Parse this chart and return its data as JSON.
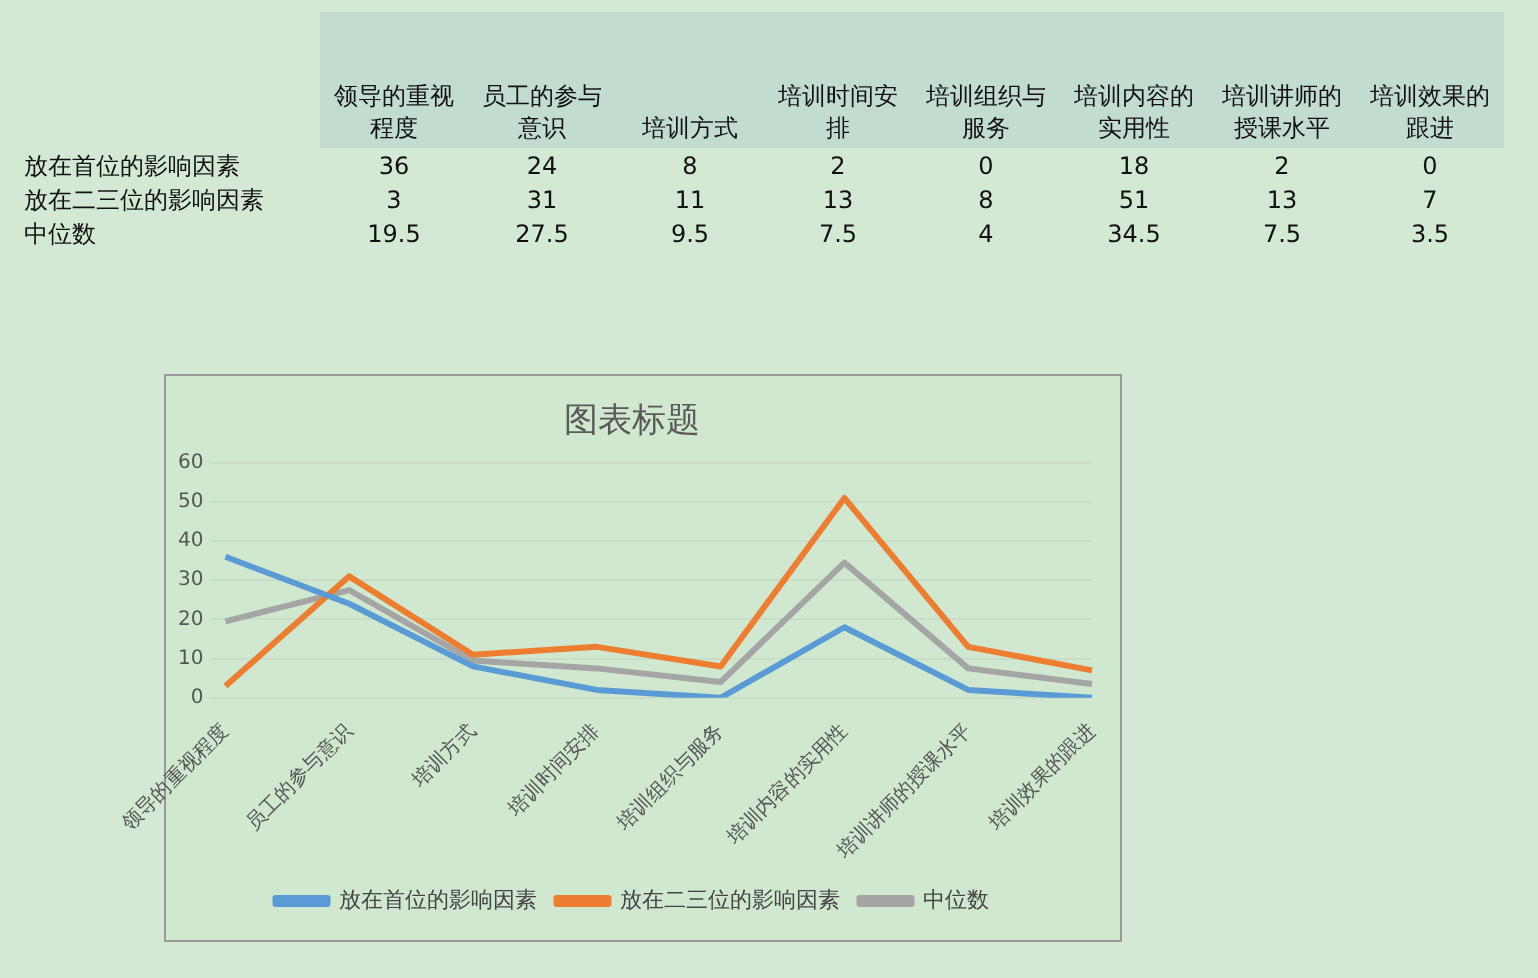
{
  "chart_data": [
    {
      "type": "heatmap",
      "categories": [
        "领导的重视程度",
        "员工的参与意识",
        "培训方式",
        "培训时间安排",
        "培训组织与服务",
        "培训内容的实用性",
        "培训讲师的授课水平",
        "培训效果的跟进"
      ],
      "y_categories": [
        "放在首位的影响因素",
        "放在二三位的影响因素",
        "中位数"
      ],
      "cells": [
        [
          36,
          24,
          8,
          2,
          0,
          18,
          2,
          0
        ],
        [
          3,
          31,
          11,
          13,
          8,
          51,
          13,
          7
        ],
        [
          19.5,
          27.5,
          9.5,
          7.5,
          4,
          34.5,
          7.5,
          3.5
        ]
      ],
      "data_labels": true
    },
    {
      "type": "line",
      "title": "图表标题",
      "categories": [
        "领导的重视程度",
        "员工的参与意识",
        "培训方式",
        "培训时间安排",
        "培训组织与服务",
        "培训内容的实用性",
        "培训讲师的授课水平",
        "培训效果的跟进"
      ],
      "series": [
        {
          "name": "放在首位的影响因素",
          "color": "#5b9bd5",
          "values": [
            36,
            24,
            8,
            2,
            0,
            18,
            2,
            0
          ]
        },
        {
          "name": "放在二三位的影响因素",
          "color": "#ed7d31",
          "values": [
            3,
            31,
            11,
            13,
            8,
            51,
            13,
            7
          ]
        },
        {
          "name": "中位数",
          "color": "#a5a5a5",
          "values": [
            19.5,
            27.5,
            9.5,
            7.5,
            4,
            34.5,
            7.5,
            3.5
          ]
        }
      ],
      "ylim": [
        0,
        60
      ],
      "yticks": [
        0,
        10,
        20,
        30,
        40,
        50,
        60
      ],
      "grid": "y",
      "legend": "bottom",
      "marker": "none",
      "line_style": "solid"
    }
  ]
}
